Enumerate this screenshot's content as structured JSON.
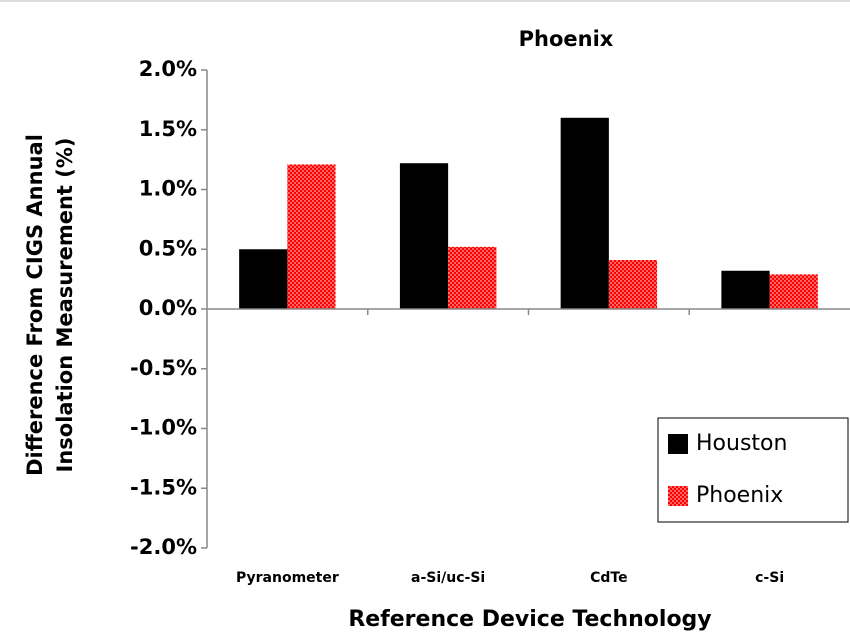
{
  "chart_data": {
    "type": "bar",
    "title": "Phoenix",
    "xlabel": "Reference Device Technology",
    "ylabel": [
      "Difference From CIGS Annual",
      "Insolation Measurement (%)"
    ],
    "categories": [
      "Pyranometer",
      "a-Si/uc-Si",
      "CdTe",
      "c-Si"
    ],
    "series": [
      {
        "name": "Houston",
        "color": "#000000",
        "values": [
          0.5,
          1.22,
          1.6,
          0.32
        ]
      },
      {
        "name": "Phoenix",
        "color": "#ff0000",
        "pattern": "dotted",
        "values": [
          1.21,
          0.52,
          0.41,
          0.29
        ]
      }
    ],
    "ylim": [
      -2,
      2
    ],
    "yticks": [
      {
        "value": -2,
        "label": "-2.0%"
      },
      {
        "value": -1.5,
        "label": "-1.5%"
      },
      {
        "value": -1,
        "label": "-1.0%"
      },
      {
        "value": -0.5,
        "label": "-0.5%"
      },
      {
        "value": 0,
        "label": "0.0%"
      },
      {
        "value": 0.5,
        "label": "0.5%"
      },
      {
        "value": 1,
        "label": "1.0%"
      },
      {
        "value": 1.5,
        "label": "1.5%"
      },
      {
        "value": 2,
        "label": "2.0%"
      }
    ],
    "grid": false,
    "legend": "lower right"
  }
}
